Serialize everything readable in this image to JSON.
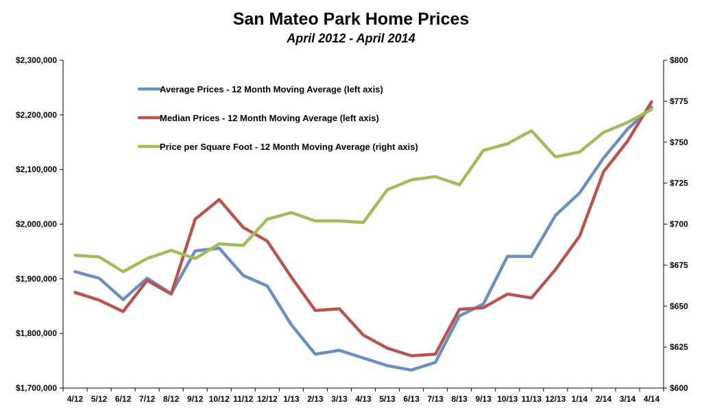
{
  "chart_data": {
    "type": "line",
    "title": "San Mateo Park Home Prices",
    "subtitle": "April 2012 - April 2014",
    "categories": [
      "4/12",
      "5/12",
      "6/12",
      "7/12",
      "8/12",
      "9/12",
      "10/12",
      "11/12",
      "12/12",
      "1/13",
      "2/13",
      "3/13",
      "4/13",
      "5/13",
      "6/13",
      "7/13",
      "8/13",
      "9/13",
      "10/13",
      "11/13",
      "12/13",
      "1/14",
      "2/14",
      "3/14",
      "4/14"
    ],
    "left_axis": {
      "ylim": [
        1700000,
        2300000
      ],
      "tick_labels": [
        "$1,700,000",
        "$1,800,000",
        "$1,900,000",
        "$2,000,000",
        "$2,100,000",
        "$2,200,000",
        "$2,300,000"
      ]
    },
    "right_axis": {
      "ylim": [
        600,
        800
      ],
      "tick_labels": [
        "$600",
        "$625",
        "$650",
        "$675",
        "$700",
        "$725",
        "$750",
        "$775",
        "$800"
      ]
    },
    "grid": false,
    "legend_position": "top-left",
    "series": [
      {
        "name": "Average Prices - 12 Month Moving Average (left axis)",
        "axis": "left",
        "color": "#6a8fc3",
        "values": [
          1913000,
          1901000,
          1862000,
          1901000,
          1873000,
          1951000,
          1956000,
          1906000,
          1887000,
          1816000,
          1762000,
          1769000,
          1755000,
          1741000,
          1733000,
          1747000,
          1832000,
          1854000,
          1941000,
          1941000,
          2016000,
          2057000,
          2121000,
          2174000,
          2214000
        ]
      },
      {
        "name": "Median Prices - 12 Month Moving Average (left axis)",
        "axis": "left",
        "color": "#b85450",
        "values": [
          1875000,
          1861000,
          1840000,
          1897000,
          1872000,
          2009000,
          2045000,
          1994000,
          1969000,
          1903000,
          1842000,
          1845000,
          1797000,
          1773000,
          1759000,
          1762000,
          1844000,
          1847000,
          1872000,
          1865000,
          1917000,
          1978000,
          2096000,
          2152000,
          2224000
        ]
      },
      {
        "name": "Price per Square Foot - 12 Month Moving Average (right axis)",
        "axis": "right",
        "color": "#9fbe5b",
        "values": [
          681,
          680,
          671,
          679,
          684,
          679,
          688,
          687,
          703,
          707,
          702,
          702,
          701,
          721,
          727,
          729,
          724,
          745,
          749,
          757,
          741,
          744,
          756,
          762,
          770
        ]
      }
    ]
  }
}
